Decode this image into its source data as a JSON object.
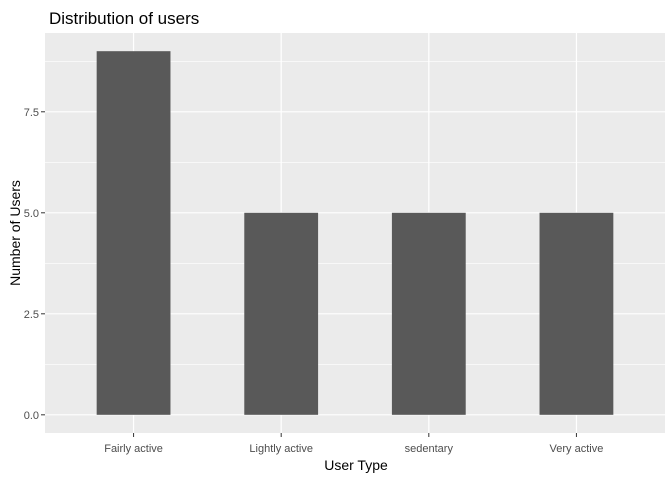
{
  "chart_data": {
    "type": "bar",
    "title": "Distribution of users",
    "xlabel": "User Type",
    "ylabel": "Number of Users",
    "categories": [
      "Fairly active",
      "Lightly active",
      "sedentary",
      "Very active"
    ],
    "values": [
      9,
      5,
      5,
      5
    ],
    "ylim": [
      -0.45,
      9.45
    ],
    "yticks": [
      0,
      2.5,
      5,
      7.5
    ],
    "ytick_labels": [
      "0.0",
      "2.5",
      "5.0",
      "7.5"
    ],
    "grid": true,
    "legend": "none",
    "colors": {
      "bar": "#595959",
      "panel": "#ebebeb",
      "grid_major": "#ffffff",
      "tick_text": "#4d4d4d",
      "tick_mark": "#333333"
    }
  }
}
